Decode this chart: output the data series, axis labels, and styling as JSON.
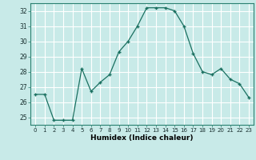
{
  "x": [
    0,
    1,
    2,
    3,
    4,
    5,
    6,
    7,
    8,
    9,
    10,
    11,
    12,
    13,
    14,
    15,
    16,
    17,
    18,
    19,
    20,
    21,
    22,
    23
  ],
  "y": [
    26.5,
    26.5,
    24.8,
    24.8,
    24.8,
    28.2,
    26.7,
    27.3,
    27.8,
    29.3,
    30.0,
    31.0,
    32.2,
    32.2,
    32.2,
    32.0,
    31.0,
    29.2,
    28.0,
    27.8,
    28.2,
    27.5,
    27.2,
    26.3
  ],
  "title": "",
  "xlabel": "Humidex (Indice chaleur)",
  "ylabel": "",
  "line_color": "#1a7060",
  "marker": "+",
  "bg_color": "#c8eae8",
  "grid_color": "#ffffff",
  "ylim": [
    24.5,
    32.5
  ],
  "xlim": [
    -0.5,
    23.5
  ],
  "yticks": [
    25,
    26,
    27,
    28,
    29,
    30,
    31,
    32
  ],
  "xticks": [
    0,
    1,
    2,
    3,
    4,
    5,
    6,
    7,
    8,
    9,
    10,
    11,
    12,
    13,
    14,
    15,
    16,
    17,
    18,
    19,
    20,
    21,
    22,
    23
  ]
}
